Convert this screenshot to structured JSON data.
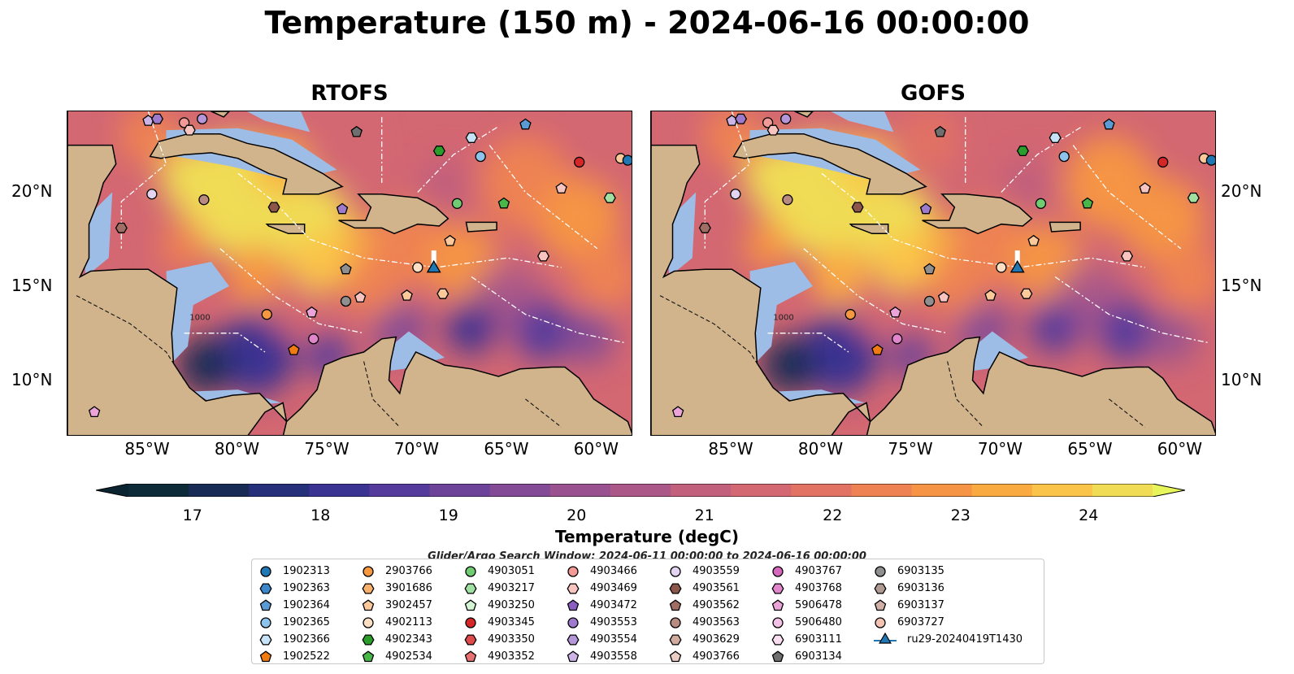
{
  "title": "Temperature (150 m) - 2024-06-16 00:00:00",
  "panels": [
    {
      "title": "RTOFS"
    },
    {
      "title": "GOFS"
    }
  ],
  "map": {
    "lon_range": [
      -89.5,
      -58
    ],
    "lat_range": [
      7,
      24.3
    ],
    "lon_ticks": [
      "85°W",
      "80°W",
      "75°W",
      "70°W",
      "65°W",
      "60°W"
    ],
    "lat_ticks": [
      "20°N",
      "15°N",
      "10°N"
    ],
    "contour_label": "1000",
    "land_color": "#d2b48c",
    "shelf_color": "#9ebde6",
    "deep_color": "#0d2a38"
  },
  "colorbar": {
    "label": "Temperature (degC)",
    "ticks": [
      "17",
      "18",
      "19",
      "20",
      "21",
      "22",
      "23",
      "24"
    ],
    "range": [
      16.5,
      24.5
    ],
    "colors": [
      "#0d2a38",
      "#172b55",
      "#26307a",
      "#3a3392",
      "#543b9c",
      "#6c4398",
      "#834b95",
      "#99528f",
      "#ab5888",
      "#c15f7d",
      "#d36772",
      "#e27263",
      "#ee8252",
      "#f59445",
      "#f9ab42",
      "#fac44a",
      "#f0dc55"
    ],
    "extend_low": "#0b2530",
    "extend_high": "#e8f55a"
  },
  "search_window": "Glider/Argo Search Window: 2024-06-11 00:00:00 to 2024-06-16 00:00:00",
  "legend": [
    {
      "label": "1902313",
      "color": "#1f77b4",
      "shape": "circle"
    },
    {
      "label": "1902363",
      "color": "#3a87c9",
      "shape": "hexagon"
    },
    {
      "label": "1902364",
      "color": "#5b9bd5",
      "shape": "pentagon"
    },
    {
      "label": "1902365",
      "color": "#8ec3ec",
      "shape": "circle"
    },
    {
      "label": "1902366",
      "color": "#c6e2f7",
      "shape": "hexagon"
    },
    {
      "label": "1902522",
      "color": "#f07b12",
      "shape": "pentagon"
    },
    {
      "label": "2903766",
      "color": "#f5983f",
      "shape": "circle"
    },
    {
      "label": "3901686",
      "color": "#f8b06d",
      "shape": "hexagon"
    },
    {
      "label": "3902457",
      "color": "#fbc99a",
      "shape": "pentagon"
    },
    {
      "label": "4902113",
      "color": "#fde0c4",
      "shape": "circle"
    },
    {
      "label": "4902343",
      "color": "#2a9d2a",
      "shape": "hexagon"
    },
    {
      "label": "4902534",
      "color": "#49b649",
      "shape": "pentagon"
    },
    {
      "label": "4903051",
      "color": "#70cc70",
      "shape": "circle"
    },
    {
      "label": "4903217",
      "color": "#a0e0a0",
      "shape": "hexagon"
    },
    {
      "label": "4903250",
      "color": "#d4f5d4",
      "shape": "pentagon"
    },
    {
      "label": "4903345",
      "color": "#d62728",
      "shape": "circle"
    },
    {
      "label": "4903350",
      "color": "#df4a4a",
      "shape": "hexagon"
    },
    {
      "label": "4903352",
      "color": "#e87070",
      "shape": "pentagon"
    },
    {
      "label": "4903466",
      "color": "#f29a96",
      "shape": "circle"
    },
    {
      "label": "4903469",
      "color": "#f8c4c0",
      "shape": "hexagon"
    },
    {
      "label": "4903472",
      "color": "#8a5fbf",
      "shape": "pentagon"
    },
    {
      "label": "4903553",
      "color": "#9e7acc",
      "shape": "circle"
    },
    {
      "label": "4903554",
      "color": "#b596d8",
      "shape": "hexagon"
    },
    {
      "label": "4903558",
      "color": "#ccb4e6",
      "shape": "pentagon"
    },
    {
      "label": "4903559",
      "color": "#e3d4f2",
      "shape": "circle"
    },
    {
      "label": "4903561",
      "color": "#8c564b",
      "shape": "hexagon"
    },
    {
      "label": "4903562",
      "color": "#a06e64",
      "shape": "pentagon"
    },
    {
      "label": "4903563",
      "color": "#b88a80",
      "shape": "circle"
    },
    {
      "label": "4903629",
      "color": "#d2ab9f",
      "shape": "hexagon"
    },
    {
      "label": "4903766",
      "color": "#eacdc4",
      "shape": "pentagon"
    },
    {
      "label": "4903767",
      "color": "#d667bd",
      "shape": "circle"
    },
    {
      "label": "4903768",
      "color": "#e185cc",
      "shape": "hexagon"
    },
    {
      "label": "5906478",
      "color": "#eba4da",
      "shape": "pentagon"
    },
    {
      "label": "5906480",
      "color": "#f3c1e6",
      "shape": "circle"
    },
    {
      "label": "6903111",
      "color": "#f9def1",
      "shape": "hexagon"
    },
    {
      "label": "6903134",
      "color": "#6f6f6f",
      "shape": "pentagon"
    },
    {
      "label": "6903135",
      "color": "#8f8f8f",
      "shape": "circle"
    },
    {
      "label": "6903136",
      "color": "#b09a94",
      "shape": "hexagon"
    },
    {
      "label": "6903137",
      "color": "#d0b0a6",
      "shape": "pentagon"
    },
    {
      "label": "6903727",
      "color": "#f2c2b2",
      "shape": "circle"
    },
    {
      "label": "ru29-20240419T1430",
      "color": "#1f77b4",
      "shape": "triangle-line"
    }
  ],
  "floats": [
    {
      "lon": -85.0,
      "lat": 23.8,
      "color": "#ccb4e6",
      "shape": "pentagon"
    },
    {
      "lon": -84.5,
      "lat": 23.9,
      "color": "#9e7acc",
      "shape": "hexagon"
    },
    {
      "lon": -83.0,
      "lat": 23.7,
      "color": "#f29a96",
      "shape": "circle"
    },
    {
      "lon": -82.7,
      "lat": 23.3,
      "color": "#f8c4c0",
      "shape": "hexagon"
    },
    {
      "lon": -82.0,
      "lat": 23.9,
      "color": "#b596d8",
      "shape": "circle"
    },
    {
      "lon": -73.4,
      "lat": 23.2,
      "color": "#6f6f6f",
      "shape": "pentagon"
    },
    {
      "lon": -64.0,
      "lat": 23.6,
      "color": "#5b9bd5",
      "shape": "pentagon"
    },
    {
      "lon": -67.0,
      "lat": 22.9,
      "color": "#c6e2f7",
      "shape": "hexagon"
    },
    {
      "lon": -66.5,
      "lat": 21.9,
      "color": "#8ec3ec",
      "shape": "circle"
    },
    {
      "lon": -68.8,
      "lat": 22.2,
      "color": "#2a9d2a",
      "shape": "hexagon"
    },
    {
      "lon": -61.0,
      "lat": 21.6,
      "color": "#d62728",
      "shape": "circle"
    },
    {
      "lon": -58.7,
      "lat": 21.8,
      "color": "#fbc99a",
      "shape": "circle"
    },
    {
      "lon": -58.3,
      "lat": 21.7,
      "color": "#1f77b4",
      "shape": "circle"
    },
    {
      "lon": -62.0,
      "lat": 20.2,
      "color": "#f8c4c0",
      "shape": "pentagon"
    },
    {
      "lon": -59.3,
      "lat": 19.7,
      "color": "#a0e0a0",
      "shape": "hexagon"
    },
    {
      "lon": -84.8,
      "lat": 19.9,
      "color": "#e3d4f2",
      "shape": "circle"
    },
    {
      "lon": -81.9,
      "lat": 19.6,
      "color": "#b88a80",
      "shape": "circle"
    },
    {
      "lon": -78.0,
      "lat": 19.2,
      "color": "#8c564b",
      "shape": "hexagon"
    },
    {
      "lon": -74.2,
      "lat": 19.1,
      "color": "#9e7acc",
      "shape": "pentagon"
    },
    {
      "lon": -67.8,
      "lat": 19.4,
      "color": "#70cc70",
      "shape": "circle"
    },
    {
      "lon": -65.2,
      "lat": 19.4,
      "color": "#49b649",
      "shape": "pentagon"
    },
    {
      "lon": -86.5,
      "lat": 18.1,
      "color": "#a06e64",
      "shape": "hexagon"
    },
    {
      "lon": -68.2,
      "lat": 17.4,
      "color": "#fbc99a",
      "shape": "pentagon"
    },
    {
      "lon": -63.0,
      "lat": 16.6,
      "color": "#f8c4c0",
      "shape": "hexagon"
    },
    {
      "lon": -74.0,
      "lat": 15.9,
      "color": "#8f8f8f",
      "shape": "pentagon"
    },
    {
      "lon": -70.0,
      "lat": 16.0,
      "color": "#fde0c4",
      "shape": "circle"
    },
    {
      "lon": -68.6,
      "lat": 14.6,
      "color": "#fbc99a",
      "shape": "hexagon"
    },
    {
      "lon": -70.6,
      "lat": 14.5,
      "color": "#fbc99a",
      "shape": "pentagon"
    },
    {
      "lon": -73.2,
      "lat": 14.4,
      "color": "#f8c4c0",
      "shape": "pentagon"
    },
    {
      "lon": -74.0,
      "lat": 14.2,
      "color": "#8f8f8f",
      "shape": "circle"
    },
    {
      "lon": -75.9,
      "lat": 13.6,
      "color": "#eba4da",
      "shape": "pentagon"
    },
    {
      "lon": -78.4,
      "lat": 13.5,
      "color": "#f5983f",
      "shape": "circle"
    },
    {
      "lon": -75.8,
      "lat": 12.2,
      "color": "#e185cc",
      "shape": "circle"
    },
    {
      "lon": -76.9,
      "lat": 11.6,
      "color": "#f07b12",
      "shape": "pentagon"
    },
    {
      "lon": -88.0,
      "lat": 8.3,
      "color": "#eba4da",
      "shape": "pentagon"
    }
  ],
  "glider": {
    "lon": -69.1,
    "lat": 15.9,
    "color": "#1f77b4",
    "track_lat": 16.9
  }
}
